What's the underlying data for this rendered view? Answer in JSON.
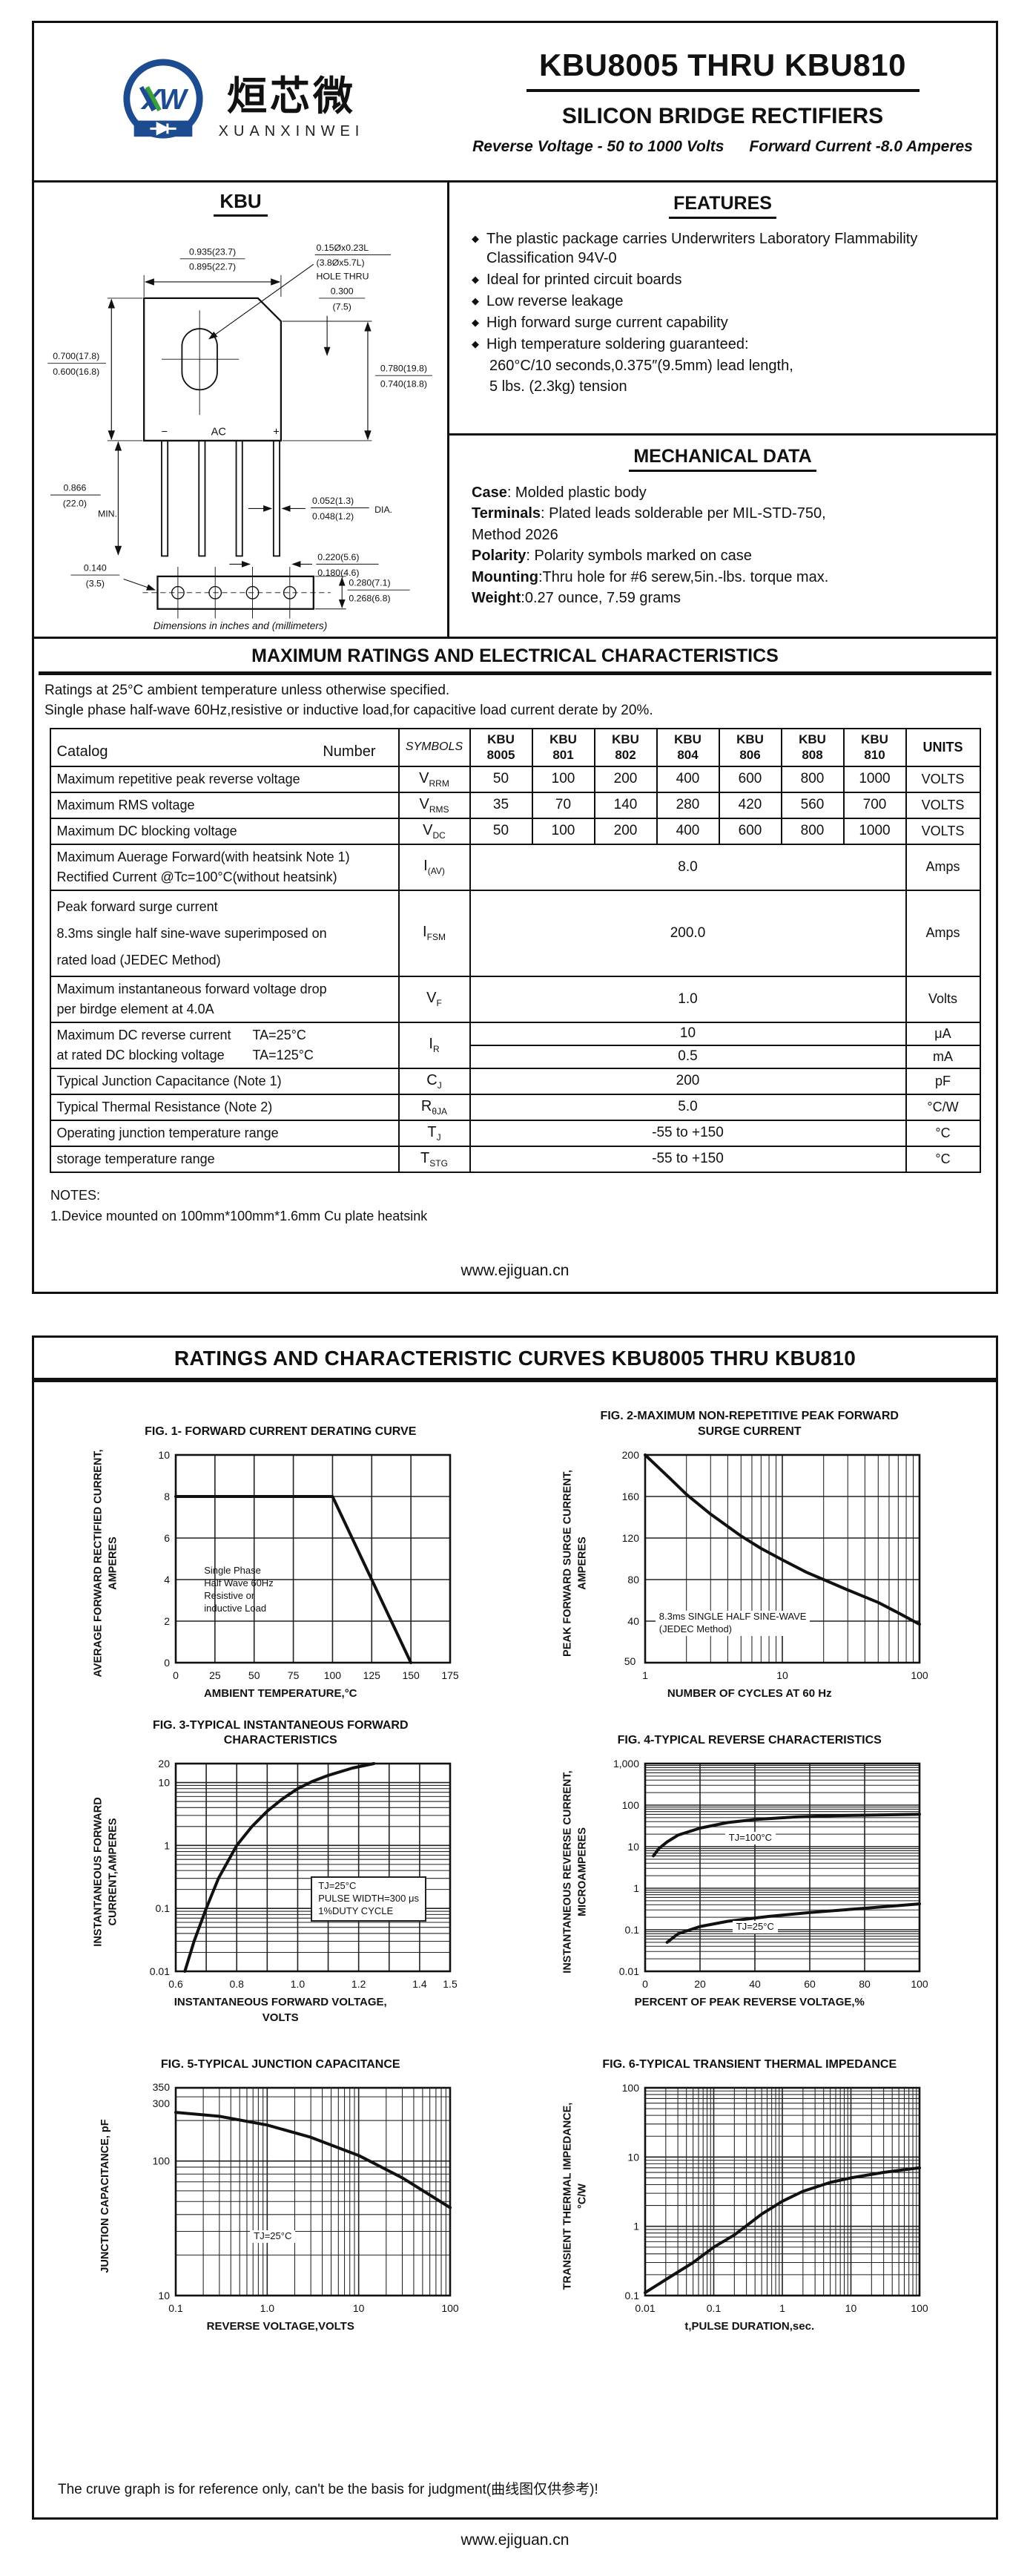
{
  "page1": {
    "logo": {
      "cn": "烜芯微",
      "en": "XUANXINWEI"
    },
    "title": "KBU8005 THRU KBU810",
    "subtitle": "SILICON BRIDGE RECTIFIERS",
    "tagline1": "Reverse Voltage - 50 to 1000 Volts",
    "tagline2": "Forward Current -8.0 Amperes",
    "pkg": {
      "name": "KBU",
      "width_top": "0.935(23.7)",
      "width_bot": "0.895(22.7)",
      "hole1": "0.15Øx0.23L",
      "hole2": "(3.8Øx5.7L)",
      "hole3": "HOLE THRU",
      "tab1": "0.300",
      "tab2": "(7.5)",
      "hl1": "0.700(17.8)",
      "hl2": "0.600(16.8)",
      "hr1": "0.780(19.8)",
      "hr2": "0.740(18.8)",
      "ll1": "0.866",
      "ll2": "(22.0)",
      "llmin": "MIN.",
      "ld1": "0.052(1.3)",
      "ld2": "0.048(1.2)",
      "lddia": "DIA.",
      "so1": "0.140",
      "so2": "(3.5)",
      "pt1": "0.220(5.6)",
      "pt2": "0.180(4.6)",
      "sh1": "0.280(7.1)",
      "sh2": "0.268(6.8)",
      "minus": "−",
      "ac": "AC",
      "plus": "+",
      "caption": "Dimensions in inches and (millimeters)"
    },
    "features": {
      "heading": "FEATURES",
      "bullet": "◆",
      "items": [
        "The plastic package carries Underwriters Laboratory Flammability Classification 94V-0",
        "Ideal for printed circuit boards",
        "Low reverse leakage",
        "High forward surge current capability",
        "High temperature soldering guaranteed:"
      ],
      "extra": [
        "260°C/10 seconds,0.375″(9.5mm) lead length,",
        "5 lbs. (2.3kg) tension"
      ]
    },
    "mechanical": {
      "heading": "MECHANICAL DATA",
      "lines": [
        {
          "b": "Case",
          "t": ": Molded plastic body"
        },
        {
          "b": "Terminals",
          "t": ": Plated leads solderable per MIL-STD-750,"
        },
        {
          "b": "",
          "t": " Method 2026"
        },
        {
          "b": "Polarity",
          "t": ": Polarity symbols marked on case"
        },
        {
          "b": "Mounting",
          "t": ":Thru hole for #6 serew,5in.-lbs. torque max."
        },
        {
          "b": "Weight",
          "t": ":0.27 ounce, 7.59 grams"
        }
      ]
    },
    "ratings": {
      "heading": "MAXIMUM RATINGS AND ELECTRICAL CHARACTERISTICS",
      "note1": "Ratings at 25°C ambient temperature unless otherwise specified.",
      "note2": "Single phase half-wave 60Hz,resistive or inductive load,for capacitive load current derate by 20%."
    },
    "table": {
      "header": {
        "catalog": "Catalog",
        "number": "Number",
        "symbols": "SYMBOLS",
        "units": "UNITS",
        "parts": [
          [
            "KBU",
            "8005"
          ],
          [
            "KBU",
            "801"
          ],
          [
            "KBU",
            "802"
          ],
          [
            "KBU",
            "804"
          ],
          [
            "KBU",
            "806"
          ],
          [
            "KBU",
            "808"
          ],
          [
            "KBU",
            "810"
          ]
        ]
      },
      "rows": [
        {
          "p": [
            "Maximum repetitive peak reverse voltage"
          ],
          "s": "V",
          "sub": "RRM",
          "v": [
            "50",
            "100",
            "200",
            "400",
            "600",
            "800",
            "1000"
          ],
          "u": "VOLTS"
        },
        {
          "p": [
            "Maximum RMS voltage"
          ],
          "s": "V",
          "sub": "RMS",
          "v": [
            "35",
            "70",
            "140",
            "280",
            "420",
            "560",
            "700"
          ],
          "u": "VOLTS"
        },
        {
          "p": [
            "Maximum DC blocking voltage"
          ],
          "s": "V",
          "sub": "DC",
          "v": [
            "50",
            "100",
            "200",
            "400",
            "600",
            "800",
            "1000"
          ],
          "u": "VOLTS"
        },
        {
          "p": [
            "Maximum Auerage Forward(with heatsink Note 1)",
            "Rectified Current @Tc=100°C(without heatsink)"
          ],
          "s": "I",
          "sub": "(AV)",
          "span": "8.0",
          "u": "Amps"
        },
        {
          "p": [
            "Peak forward surge current",
            "8.3ms single half sine-wave superimposed on",
            "rated load (JEDEC Method)"
          ],
          "s": "I",
          "sub": "FSM",
          "span": "200.0",
          "u": "Amps"
        },
        {
          "p": [
            "Maximum instantaneous forward voltage drop",
            "per birdge element at 4.0A"
          ],
          "s": "V",
          "sub": "F",
          "span": "1.0",
          "u": "Volts"
        },
        {
          "p1": "Maximum DC reverse current",
          "c1": "TA=25°C",
          "p2": "at rated DC blocking voltage",
          "c2": "TA=125°C",
          "s": "I",
          "sub": "R",
          "vtop": "10",
          "utop": "μA",
          "vbot": "0.5",
          "ubot": "mA"
        },
        {
          "p": [
            "Typical Junction Capacitance (Note 1)"
          ],
          "s": "C",
          "sub": "J",
          "span": "200",
          "u": "pF"
        },
        {
          "p": [
            "Typical Thermal Resistance (Note 2)"
          ],
          "s": "R",
          "sub": "θJA",
          "span": "5.0",
          "u": "°C/W"
        },
        {
          "p": [
            "Operating junction temperature range"
          ],
          "s": "T",
          "sub": "J",
          "span": "-55 to +150",
          "u": "°C"
        },
        {
          "p": [
            "storage temperature range"
          ],
          "s": "T",
          "sub": "STG",
          "span": "-55 to +150",
          "u": "°C"
        }
      ]
    },
    "notes": {
      "heading": "NOTES:",
      "item": "1.Device mounted on 100mm*100mm*1.6mm Cu plate heatsink"
    },
    "footer": "www.ejiguan.cn"
  },
  "page2": {
    "banner": "RATINGS AND CHARACTERISTIC CURVES KBU8005 THRU KBU810",
    "disclaimer": "The cruve graph is for reference only, can't be the basis for judgment(曲线图仅供参考)!",
    "footer": "www.ejiguan.cn"
  },
  "figures": [
    {
      "title": "FIG. 1- FORWARD CURRENT DERATING CURVE",
      "title2": "",
      "ylab1": "AVERAGE FORWARD RECTIFIED CURRENT,",
      "ylab2": "AMPERES",
      "xlab": "AMBIENT TEMPERATURE,°C",
      "xlab2": "",
      "yticks": [
        "10",
        "8",
        "6",
        "4",
        "2",
        "0"
      ],
      "xticks": [
        "0",
        "25",
        "50",
        "75",
        "100",
        "125",
        "150",
        "175"
      ],
      "ann": [
        "Single Phase",
        "Half Wave 60Hz",
        "Resistive or",
        "inductive Load"
      ]
    },
    {
      "title": "FIG. 2-MAXIMUM NON-REPETITIVE PEAK FORWARD",
      "title2": "SURGE CURRENT",
      "ylab1": "PEAK FORWARD SURGE CURRENT,",
      "ylab2": "AMPERES",
      "xlab": "NUMBER OF CYCLES AT 60 Hz",
      "xlab2": "",
      "yticks": [
        "200",
        "160",
        "120",
        "80",
        "40"
      ],
      "corner": "50",
      "xticks": [
        "1",
        "10",
        "100"
      ],
      "ann": [
        "8.3ms SINGLE HALF SINE-WAVE",
        "(JEDEC Method)"
      ]
    },
    {
      "title": "FIG. 3-TYPICAL INSTANTANEOUS FORWARD",
      "title2": "CHARACTERISTICS",
      "ylab1": "INSTANTANEOUS FORWARD",
      "ylab2": "CURRENT,AMPERES",
      "xlab": "INSTANTANEOUS FORWARD VOLTAGE,",
      "xlab2": "VOLTS",
      "yticks": [
        "20",
        "10",
        "1",
        "0.1",
        "0.01"
      ],
      "xticks": [
        "0.6",
        "0.8",
        "1.0",
        "1.2",
        "1.4",
        "1.5"
      ],
      "ann": [
        "TJ=25°C",
        "PULSE WIDTH=300 μs",
        "1%DUTY CYCLE"
      ]
    },
    {
      "title": "FIG. 4-TYPICAL REVERSE CHARACTERISTICS",
      "title2": "",
      "ylab1": "INSTANTANEOUS REVERSE CURRENT,",
      "ylab2": "MICROAMPERES",
      "xlab": "PERCENT OF PEAK REVERSE VOLTAGE,%",
      "xlab2": "",
      "yticks": [
        "1,000",
        "100",
        "10",
        "1",
        "0.1",
        "0.01"
      ],
      "xticks": [
        "0",
        "20",
        "40",
        "60",
        "80",
        "100"
      ],
      "ann": [
        "TJ=100°C",
        "TJ=25°C"
      ]
    },
    {
      "title": "FIG. 5-TYPICAL JUNCTION CAPACITANCE",
      "title2": "",
      "ylab1": "JUNCTION CAPACITANCE, pF",
      "ylab2": "",
      "xlab": "REVERSE VOLTAGE,VOLTS",
      "xlab2": "",
      "yticks": [
        "350",
        "300",
        "100",
        "10"
      ],
      "xticks": [
        "0.1",
        "1.0",
        "10",
        "100"
      ],
      "ann": [
        "TJ=25°C"
      ]
    },
    {
      "title": "FIG. 6-TYPICAL TRANSIENT THERMAL IMPEDANCE",
      "title2": "",
      "ylab1": "TRANSIENT THERMAL IMPEDANCE,",
      "ylab2": "°C/W",
      "xlab": "t,PULSE DURATION,sec.",
      "xlab2": "",
      "yticks": [
        "100",
        "10",
        "1",
        "0.1"
      ],
      "xticks": [
        "0.01",
        "0.1",
        "1",
        "10",
        "100"
      ],
      "ann": []
    }
  ],
  "chart_data": [
    {
      "type": "line",
      "title": "FIG. 1- FORWARD CURRENT DERATING CURVE",
      "xlabel": "AMBIENT TEMPERATURE,°C",
      "ylabel": "AVERAGE FORWARD RECTIFIED CURRENT, AMPERES",
      "xscale": "linear",
      "yscale": "linear",
      "xlim": [
        0,
        175
      ],
      "ylim": [
        0,
        10
      ],
      "xticks": [
        0,
        25,
        50,
        75,
        100,
        125,
        150,
        175
      ],
      "yticks": [
        0,
        2,
        4,
        6,
        8,
        10
      ],
      "annotation": "Single Phase Half Wave 60Hz Resistive or inductive Load",
      "grid": true,
      "series": [
        {
          "name": "forward current derating",
          "points": [
            [
              0,
              8
            ],
            [
              100,
              8
            ],
            [
              150,
              0
            ]
          ]
        }
      ]
    },
    {
      "type": "line",
      "title": "FIG. 2-MAXIMUM NON-REPETITIVE PEAK FORWARD SURGE CURRENT",
      "xlabel": "NUMBER OF CYCLES AT 60 Hz",
      "ylabel": "PEAK FORWARD SURGE CURRENT, AMPERES",
      "xscale": "log",
      "yscale": "linear",
      "xlim": [
        1,
        100
      ],
      "ylim": [
        0,
        200
      ],
      "yticks": [
        40,
        80,
        120,
        160,
        200
      ],
      "annotation": "8.3ms SINGLE HALF SINE-WAVE (JEDEC Method)",
      "grid": true,
      "series": [
        {
          "name": "peak surge current",
          "points": [
            [
              1,
              200
            ],
            [
              1.5,
              178
            ],
            [
              2,
              162
            ],
            [
              3,
              143
            ],
            [
              5,
              122
            ],
            [
              7,
              110
            ],
            [
              10,
              99
            ],
            [
              15,
              87
            ],
            [
              20,
              80
            ],
            [
              30,
              70
            ],
            [
              50,
              58
            ],
            [
              70,
              48
            ],
            [
              100,
              37
            ]
          ]
        }
      ]
    },
    {
      "type": "line",
      "title": "FIG. 3-TYPICAL INSTANTANEOUS FORWARD CHARACTERISTICS",
      "xlabel": "INSTANTANEOUS FORWARD VOLTAGE, VOLTS",
      "ylabel": "INSTANTANEOUS FORWARD CURRENT,AMPERES",
      "xscale": "linear",
      "yscale": "log",
      "xlim": [
        0.6,
        1.5
      ],
      "ylim": [
        0.01,
        20
      ],
      "annotation": "TJ=25°C PULSE WIDTH=300 μs 1%DUTY CYCLE",
      "grid": true,
      "series": [
        {
          "name": "forward characteristic",
          "points": [
            [
              0.63,
              0.01
            ],
            [
              0.66,
              0.03
            ],
            [
              0.7,
              0.1
            ],
            [
              0.74,
              0.3
            ],
            [
              0.8,
              1
            ],
            [
              0.85,
              2
            ],
            [
              0.9,
              3.5
            ],
            [
              0.95,
              5.5
            ],
            [
              1.0,
              8
            ],
            [
              1.05,
              10.5
            ],
            [
              1.1,
              13
            ],
            [
              1.18,
              17
            ],
            [
              1.25,
              20
            ]
          ]
        }
      ]
    },
    {
      "type": "line",
      "title": "FIG. 4-TYPICAL REVERSE CHARACTERISTICS",
      "xlabel": "PERCENT OF PEAK REVERSE VOLTAGE,%",
      "ylabel": "INSTANTANEOUS REVERSE CURRENT, MICROAMPERES",
      "xscale": "linear",
      "yscale": "log",
      "xlim": [
        0,
        100
      ],
      "ylim": [
        0.01,
        1000
      ],
      "grid": true,
      "series": [
        {
          "name": "TJ=100°C",
          "points": [
            [
              3,
              6
            ],
            [
              5,
              9
            ],
            [
              8,
              13
            ],
            [
              12,
              19
            ],
            [
              20,
              28
            ],
            [
              30,
              38
            ],
            [
              40,
              45
            ],
            [
              55,
              52
            ],
            [
              70,
              56
            ],
            [
              85,
              58
            ],
            [
              100,
              60
            ]
          ]
        },
        {
          "name": "TJ=25°C",
          "points": [
            [
              8,
              0.05
            ],
            [
              12,
              0.08
            ],
            [
              20,
              0.12
            ],
            [
              30,
              0.16
            ],
            [
              45,
              0.21
            ],
            [
              60,
              0.26
            ],
            [
              80,
              0.33
            ],
            [
              100,
              0.42
            ]
          ]
        }
      ]
    },
    {
      "type": "line",
      "title": "FIG. 5-TYPICAL JUNCTION CAPACITANCE",
      "xlabel": "REVERSE VOLTAGE,VOLTS",
      "ylabel": "JUNCTION CAPACITANCE, pF",
      "xscale": "log",
      "yscale": "log",
      "xlim": [
        0.1,
        100
      ],
      "ylim": [
        10,
        350
      ],
      "annotation": "TJ=25°C",
      "grid": true,
      "series": [
        {
          "name": "junction capacitance",
          "points": [
            [
              0.1,
              230
            ],
            [
              0.3,
              215
            ],
            [
              1,
              185
            ],
            [
              3,
              150
            ],
            [
              10,
              110
            ],
            [
              30,
              75
            ],
            [
              100,
              45
            ]
          ]
        }
      ]
    },
    {
      "type": "line",
      "title": "FIG. 6-TYPICAL TRANSIENT THERMAL IMPEDANCE",
      "xlabel": "t,PULSE DURATION,sec.",
      "ylabel": "TRANSIENT THERMAL IMPEDANCE, °C/W",
      "xscale": "log",
      "yscale": "log",
      "xlim": [
        0.01,
        100
      ],
      "ylim": [
        0.1,
        100
      ],
      "grid": true,
      "series": [
        {
          "name": "transient thermal impedance",
          "points": [
            [
              0.01,
              0.11
            ],
            [
              0.02,
              0.17
            ],
            [
              0.05,
              0.3
            ],
            [
              0.1,
              0.5
            ],
            [
              0.2,
              0.75
            ],
            [
              0.5,
              1.5
            ],
            [
              1,
              2.3
            ],
            [
              2,
              3.2
            ],
            [
              5,
              4.3
            ],
            [
              10,
              5
            ],
            [
              30,
              6
            ],
            [
              100,
              7
            ]
          ]
        }
      ]
    }
  ]
}
